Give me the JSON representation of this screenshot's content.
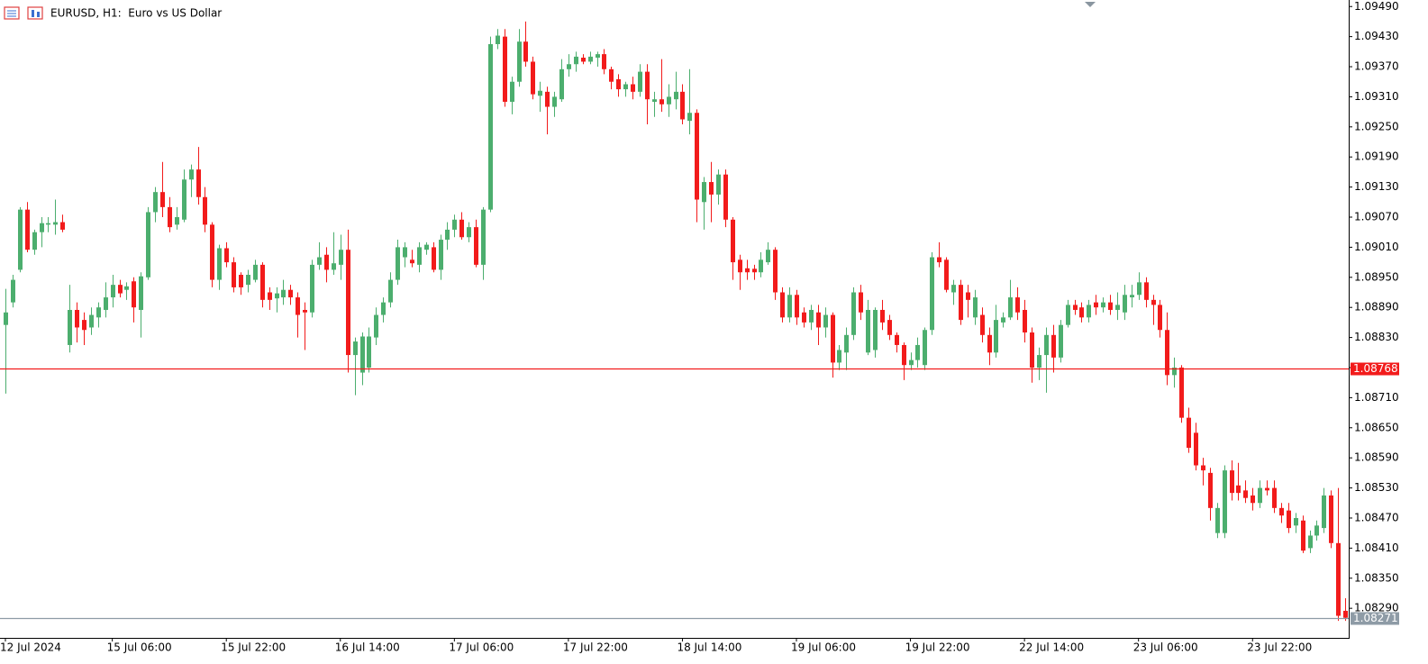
{
  "chart_data": {
    "type": "candlestick",
    "title": "EURUSD, H1:  Euro vs US Dollar",
    "up_color": "#4cae6e",
    "down_color": "#f21b1b",
    "categories": [
      "12 Jul 2024",
      null,
      null,
      null,
      null,
      null,
      null,
      null,
      null,
      null,
      null,
      null,
      null,
      null,
      null,
      "15 Jul 06:00",
      null,
      null,
      null,
      null,
      null,
      null,
      null,
      null,
      null,
      null,
      null,
      null,
      null,
      null,
      null,
      "15 Jul 22:00",
      null,
      null,
      null,
      null,
      null,
      null,
      null,
      null,
      null,
      null,
      null,
      null,
      null,
      null,
      null,
      "16 Jul 14:00",
      null,
      null,
      null,
      null,
      null,
      null,
      null,
      null,
      null,
      null,
      null,
      null,
      null,
      null,
      null,
      "17 Jul 06:00",
      null,
      null,
      null,
      null,
      null,
      null,
      null,
      null,
      null,
      null,
      null,
      null,
      null,
      null,
      null,
      "17 Jul 22:00",
      null,
      null,
      null,
      null,
      null,
      null,
      null,
      null,
      null,
      null,
      null,
      null,
      null,
      null,
      null,
      "18 Jul 14:00",
      null,
      null,
      null,
      null,
      null,
      null,
      null,
      null,
      null,
      null,
      null,
      null,
      null,
      null,
      null,
      "19 Jul 06:00",
      null,
      null,
      null,
      null,
      null,
      null,
      null,
      null,
      null,
      null,
      null,
      null,
      null,
      null,
      null,
      "19 Jul 22:00",
      null,
      null,
      null,
      null,
      null,
      null,
      null,
      null,
      null,
      null,
      null,
      null,
      null,
      null,
      null,
      "22 Jul 14:00",
      null,
      null,
      null,
      null,
      null,
      null,
      null,
      null,
      null,
      null,
      null,
      null,
      null,
      null,
      null,
      "23 Jul 06:00",
      null,
      null,
      null,
      null,
      null,
      null,
      null,
      null,
      null,
      null,
      null,
      null,
      null,
      null,
      null,
      "23 Jul 22:00",
      null,
      null,
      null,
      null,
      null,
      null,
      null,
      null,
      null,
      null,
      null,
      null,
      null
    ],
    "ohlc": [
      [
        1.08855,
        1.08927,
        1.08718,
        1.0888
      ],
      [
        1.089,
        1.08955,
        1.0889,
        1.08945
      ],
      [
        1.08965,
        1.0909,
        1.0896,
        1.09085
      ],
      [
        1.09085,
        1.091,
        1.09,
        1.09005
      ],
      [
        1.09005,
        1.09045,
        1.08995,
        1.0904
      ],
      [
        1.0904,
        1.0907,
        1.0901,
        1.09058
      ],
      [
        1.09055,
        1.0907,
        1.0904,
        1.09058
      ],
      [
        1.09055,
        1.09105,
        1.09035,
        1.0906
      ],
      [
        1.0906,
        1.09075,
        1.0904,
        1.09045
      ],
      [
        1.08815,
        1.08935,
        1.088,
        1.08885
      ],
      [
        1.08885,
        1.089,
        1.0882,
        1.0885
      ],
      [
        1.08865,
        1.0888,
        1.08815,
        1.08845
      ],
      [
        1.0885,
        1.0889,
        1.08835,
        1.08875
      ],
      [
        1.0887,
        1.089,
        1.0885,
        1.0889
      ],
      [
        1.08885,
        1.0894,
        1.0887,
        1.0891
      ],
      [
        1.0891,
        1.08955,
        1.0889,
        1.08935
      ],
      [
        1.08935,
        1.08945,
        1.0891,
        1.08918
      ],
      [
        1.08925,
        1.0894,
        1.08905,
        1.08932
      ],
      [
        1.08942,
        1.0895,
        1.0886,
        1.0889
      ],
      [
        1.08885,
        1.0896,
        1.0883,
        1.08952
      ],
      [
        1.0895,
        1.0909,
        1.08945,
        1.0908
      ],
      [
        1.0908,
        1.0913,
        1.0906,
        1.0912
      ],
      [
        1.0912,
        1.0918,
        1.0907,
        1.0909
      ],
      [
        1.0909,
        1.0911,
        1.0904,
        1.0905
      ],
      [
        1.09055,
        1.0909,
        1.09045,
        1.0907
      ],
      [
        1.09065,
        1.09165,
        1.0906,
        1.09145
      ],
      [
        1.09145,
        1.09175,
        1.0911,
        1.09165
      ],
      [
        1.09165,
        1.0921,
        1.09095,
        1.0911
      ],
      [
        1.0911,
        1.0913,
        1.0904,
        1.09055
      ],
      [
        1.09055,
        1.0906,
        1.0893,
        1.08945
      ],
      [
        1.08945,
        1.09015,
        1.08925,
        1.09008
      ],
      [
        1.09008,
        1.0902,
        1.0897,
        1.0898
      ],
      [
        1.0898,
        1.0899,
        1.0892,
        1.0893
      ],
      [
        1.08955,
        1.0896,
        1.08915,
        1.0893
      ],
      [
        1.08935,
        1.08965,
        1.0892,
        1.08955
      ],
      [
        1.08945,
        1.08985,
        1.0894,
        1.08975
      ],
      [
        1.08975,
        1.0898,
        1.0889,
        1.08905
      ],
      [
        1.0892,
        1.0893,
        1.08885,
        1.08905
      ],
      [
        1.08908,
        1.0893,
        1.0888,
        1.08918
      ],
      [
        1.0891,
        1.08945,
        1.08895,
        1.08925
      ],
      [
        1.08925,
        1.08935,
        1.08895,
        1.0891
      ],
      [
        1.0891,
        1.0892,
        1.0883,
        1.08875
      ],
      [
        1.08885,
        1.089,
        1.08805,
        1.0888
      ],
      [
        1.0888,
        1.08985,
        1.0887,
        1.08975
      ],
      [
        1.08975,
        1.0902,
        1.08965,
        1.0899
      ],
      [
        1.08995,
        1.0901,
        1.0894,
        1.08965
      ],
      [
        1.08965,
        1.0904,
        1.08955,
        1.08978
      ],
      [
        1.08975,
        1.09035,
        1.08945,
        1.09005
      ],
      [
        1.09005,
        1.09045,
        1.0876,
        1.08795
      ],
      [
        1.08795,
        1.0883,
        1.08715,
        1.08822
      ],
      [
        1.0876,
        1.0884,
        1.08735,
        1.08832
      ],
      [
        1.0877,
        1.0885,
        1.0876,
        1.08832
      ],
      [
        1.0883,
        1.0889,
        1.08815,
        1.08875
      ],
      [
        1.08875,
        1.0891,
        1.0886,
        1.089
      ],
      [
        1.089,
        1.0896,
        1.0889,
        1.08945
      ],
      [
        1.08945,
        1.09025,
        1.08935,
        1.0901
      ],
      [
        1.0899,
        1.0902,
        1.0897,
        1.0901
      ],
      [
        1.08985,
        1.09005,
        1.0897,
        1.08978
      ],
      [
        1.08975,
        1.0902,
        1.0896,
        1.0901
      ],
      [
        1.09005,
        1.0902,
        1.08995,
        1.09015
      ],
      [
        1.0901,
        1.0902,
        1.0896,
        1.08965
      ],
      [
        1.08965,
        1.09035,
        1.08945,
        1.09025
      ],
      [
        1.09025,
        1.0906,
        1.09005,
        1.09045
      ],
      [
        1.09045,
        1.09075,
        1.0903,
        1.09065
      ],
      [
        1.09065,
        1.0908,
        1.09025,
        1.0903
      ],
      [
        1.0903,
        1.0906,
        1.0902,
        1.0905
      ],
      [
        1.0905,
        1.09065,
        1.0897,
        1.08975
      ],
      [
        1.08975,
        1.0909,
        1.08945,
        1.09085
      ],
      [
        1.09085,
        1.0943,
        1.0908,
        1.09415
      ],
      [
        1.09415,
        1.09445,
        1.09405,
        1.09432
      ],
      [
        1.0943,
        1.09445,
        1.0929,
        1.093
      ],
      [
        1.093,
        1.0935,
        1.09275,
        1.0934
      ],
      [
        1.0934,
        1.09445,
        1.0933,
        1.0942
      ],
      [
        1.0942,
        1.0946,
        1.0937,
        1.0938
      ],
      [
        1.0938,
        1.0939,
        1.09305,
        1.09315
      ],
      [
        1.09312,
        1.0934,
        1.0928,
        1.09322
      ],
      [
        1.0932,
        1.0933,
        1.09235,
        1.0929
      ],
      [
        1.0929,
        1.0932,
        1.0927,
        1.0931
      ],
      [
        1.09305,
        1.09385,
        1.093,
        1.09365
      ],
      [
        1.09365,
        1.09395,
        1.0935,
        1.09375
      ],
      [
        1.09375,
        1.094,
        1.0936,
        1.0939
      ],
      [
        1.09388,
        1.09395,
        1.09375,
        1.0938
      ],
      [
        1.0938,
        1.094,
        1.09375,
        1.0939
      ],
      [
        1.09388,
        1.094,
        1.0937,
        1.09395
      ],
      [
        1.09395,
        1.09405,
        1.09355,
        1.09365
      ],
      [
        1.09365,
        1.0937,
        1.09325,
        1.0934
      ],
      [
        1.09345,
        1.09355,
        1.0931,
        1.09325
      ],
      [
        1.09325,
        1.0934,
        1.0931,
        1.09335
      ],
      [
        1.09335,
        1.0935,
        1.09305,
        1.0932
      ],
      [
        1.0932,
        1.09375,
        1.0931,
        1.0936
      ],
      [
        1.0936,
        1.09375,
        1.09255,
        1.09305
      ],
      [
        1.093,
        1.0932,
        1.0927,
        1.09305
      ],
      [
        1.09305,
        1.09385,
        1.0928,
        1.09295
      ],
      [
        1.09295,
        1.09335,
        1.0927,
        1.0931
      ],
      [
        1.09305,
        1.0936,
        1.09285,
        1.0932
      ],
      [
        1.0932,
        1.09335,
        1.09255,
        1.09265
      ],
      [
        1.09262,
        1.09365,
        1.09235,
        1.09278
      ],
      [
        1.09278,
        1.09285,
        1.0906,
        1.09105
      ],
      [
        1.091,
        1.0915,
        1.09045,
        1.0914
      ],
      [
        1.0914,
        1.0918,
        1.0906,
        1.09115
      ],
      [
        1.09115,
        1.09165,
        1.09095,
        1.09155
      ],
      [
        1.09155,
        1.09165,
        1.0905,
        1.09065
      ],
      [
        1.09065,
        1.0907,
        1.08945,
        1.0898
      ],
      [
        1.08985,
        1.08995,
        1.08925,
        1.0896
      ],
      [
        1.08968,
        1.08985,
        1.08945,
        1.0896
      ],
      [
        1.08967,
        1.08975,
        1.08945,
        1.0896
      ],
      [
        1.0896,
        1.09,
        1.0895,
        1.08985
      ],
      [
        1.0898,
        1.0902,
        1.08975,
        1.09005
      ],
      [
        1.09005,
        1.0901,
        1.08905,
        1.0892
      ],
      [
        1.0892,
        1.0893,
        1.0886,
        1.0887
      ],
      [
        1.0887,
        1.0893,
        1.0886,
        1.08915
      ],
      [
        1.08915,
        1.08925,
        1.08855,
        1.0887
      ],
      [
        1.0888,
        1.0889,
        1.0885,
        1.0886
      ],
      [
        1.0886,
        1.08895,
        1.08845,
        1.08885
      ],
      [
        1.0888,
        1.08895,
        1.08815,
        1.0885
      ],
      [
        1.0885,
        1.0889,
        1.0883,
        1.08875
      ],
      [
        1.08875,
        1.0888,
        1.0875,
        1.0878
      ],
      [
        1.0878,
        1.08815,
        1.08765,
        1.08805
      ],
      [
        1.088,
        1.0885,
        1.08765,
        1.08835
      ],
      [
        1.08835,
        1.0893,
        1.08825,
        1.0892
      ],
      [
        1.0892,
        1.08935,
        1.08865,
        1.0888
      ],
      [
        1.088,
        1.08905,
        1.08795,
        1.08885
      ],
      [
        1.08805,
        1.0889,
        1.0879,
        1.08885
      ],
      [
        1.08885,
        1.08905,
        1.08845,
        1.0886
      ],
      [
        1.08865,
        1.08875,
        1.08825,
        1.08835
      ],
      [
        1.08835,
        1.0884,
        1.088,
        1.08815
      ],
      [
        1.08815,
        1.0882,
        1.08745,
        1.08775
      ],
      [
        1.08775,
        1.088,
        1.08765,
        1.08785
      ],
      [
        1.08785,
        1.0883,
        1.0877,
        1.08815
      ],
      [
        1.08775,
        1.0885,
        1.08765,
        1.08845
      ],
      [
        1.08845,
        1.09,
        1.08835,
        1.0899
      ],
      [
        1.0899,
        1.0902,
        1.0897,
        1.0898
      ],
      [
        1.08985,
        1.0899,
        1.0892,
        1.08925
      ],
      [
        1.0892,
        1.08945,
        1.08895,
        1.08935
      ],
      [
        1.08935,
        1.08945,
        1.08855,
        1.08865
      ],
      [
        1.0892,
        1.08935,
        1.0887,
        1.08905
      ],
      [
        1.0887,
        1.08925,
        1.08855,
        1.0891
      ],
      [
        1.08875,
        1.0889,
        1.0882,
        1.08835
      ],
      [
        1.08835,
        1.0885,
        1.08775,
        1.088
      ],
      [
        1.088,
        1.08895,
        1.0879,
        1.08865
      ],
      [
        1.0886,
        1.0888,
        1.0885,
        1.0887
      ],
      [
        1.0887,
        1.08945,
        1.08865,
        1.0891
      ],
      [
        1.0891,
        1.0893,
        1.08865,
        1.0888
      ],
      [
        1.08885,
        1.08905,
        1.0882,
        1.0884
      ],
      [
        1.0884,
        1.0885,
        1.0874,
        1.0877
      ],
      [
        1.0877,
        1.0881,
        1.08745,
        1.08795
      ],
      [
        1.08795,
        1.0885,
        1.0872,
        1.08835
      ],
      [
        1.08835,
        1.08855,
        1.0876,
        1.0879
      ],
      [
        1.0879,
        1.08865,
        1.0878,
        1.08855
      ],
      [
        1.08855,
        1.08905,
        1.0885,
        1.08895
      ],
      [
        1.08895,
        1.08905,
        1.08875,
        1.08885
      ],
      [
        1.0889,
        1.089,
        1.0886,
        1.0887
      ],
      [
        1.0887,
        1.08905,
        1.0886,
        1.08895
      ],
      [
        1.089,
        1.08915,
        1.08875,
        1.0889
      ],
      [
        1.0889,
        1.0891,
        1.0888,
        1.089
      ],
      [
        1.089,
        1.08915,
        1.08875,
        1.08885
      ],
      [
        1.08885,
        1.0892,
        1.08865,
        1.08895
      ],
      [
        1.0888,
        1.08935,
        1.08865,
        1.08915
      ],
      [
        1.0891,
        1.08935,
        1.0889,
        1.08915
      ],
      [
        1.08915,
        1.0896,
        1.08905,
        1.0894
      ],
      [
        1.0894,
        1.0895,
        1.0889,
        1.08905
      ],
      [
        1.08905,
        1.08915,
        1.08855,
        1.08895
      ],
      [
        1.08895,
        1.08905,
        1.0883,
        1.08845
      ],
      [
        1.08845,
        1.0888,
        1.08735,
        1.08755
      ],
      [
        1.08755,
        1.0879,
        1.0873,
        1.0877
      ],
      [
        1.0877,
        1.08775,
        1.0866,
        1.0867
      ],
      [
        1.0867,
        1.0869,
        1.086,
        1.0861
      ],
      [
        1.0864,
        1.0866,
        1.08565,
        1.08575
      ],
      [
        1.08575,
        1.0859,
        1.08535,
        1.08565
      ],
      [
        1.0856,
        1.0857,
        1.08465,
        1.0849
      ],
      [
        1.0844,
        1.085,
        1.0843,
        1.0849
      ],
      [
        1.0844,
        1.08575,
        1.0843,
        1.08565
      ],
      [
        1.08565,
        1.08585,
        1.08505,
        1.0852
      ],
      [
        1.08535,
        1.0858,
        1.08505,
        1.0852
      ],
      [
        1.08525,
        1.08545,
        1.085,
        1.0851
      ],
      [
        1.08515,
        1.0853,
        1.08485,
        1.085
      ],
      [
        1.085,
        1.08545,
        1.0849,
        1.0853
      ],
      [
        1.0853,
        1.08545,
        1.08515,
        1.08525
      ],
      [
        1.0853,
        1.08545,
        1.0848,
        1.0849
      ],
      [
        1.0849,
        1.085,
        1.0846,
        1.08475
      ],
      [
        1.08485,
        1.085,
        1.0844,
        1.0845
      ],
      [
        1.08455,
        1.0848,
        1.0844,
        1.0847
      ],
      [
        1.08465,
        1.08475,
        1.084,
        1.08405
      ],
      [
        1.0841,
        1.08445,
        1.084,
        1.08435
      ],
      [
        1.08435,
        1.08465,
        1.08425,
        1.08455
      ],
      [
        1.0845,
        1.0853,
        1.0844,
        1.08515
      ],
      [
        1.08515,
        1.08525,
        1.0841,
        1.0842
      ],
      [
        1.0842,
        1.0853,
        1.08265,
        1.08275
      ],
      [
        1.08285,
        1.0831,
        1.08265,
        1.08271
      ]
    ],
    "ylim": [
      1.08231,
      1.09503
    ],
    "yticks": [
      {
        "value": 1.0949,
        "label": "1.09490"
      },
      {
        "value": 1.0943,
        "label": "1.09430"
      },
      {
        "value": 1.0937,
        "label": "1.09370"
      },
      {
        "value": 1.0931,
        "label": "1.09310"
      },
      {
        "value": 1.0925,
        "label": "1.09250"
      },
      {
        "value": 1.0919,
        "label": "1.09190"
      },
      {
        "value": 1.0913,
        "label": "1.09130"
      },
      {
        "value": 1.0907,
        "label": "1.09070"
      },
      {
        "value": 1.0901,
        "label": "1.09010"
      },
      {
        "value": 1.0895,
        "label": "1.08950"
      },
      {
        "value": 1.0889,
        "label": "1.08890"
      },
      {
        "value": 1.0883,
        "label": "1.08830"
      },
      {
        "value": 1.0877,
        "label": "1.08770"
      },
      {
        "value": 1.0871,
        "label": "1.08710"
      },
      {
        "value": 1.0865,
        "label": "1.08650"
      },
      {
        "value": 1.0859,
        "label": "1.08590"
      },
      {
        "value": 1.0853,
        "label": "1.08530"
      },
      {
        "value": 1.0847,
        "label": "1.08470"
      },
      {
        "value": 1.0841,
        "label": "1.08410"
      },
      {
        "value": 1.0835,
        "label": "1.08350"
      },
      {
        "value": 1.0829,
        "label": "1.08290"
      }
    ],
    "hlines": [
      {
        "value": 1.08768,
        "color": "#f21b1b"
      },
      {
        "value": 1.08271,
        "color": "#8e9ba6"
      }
    ]
  }
}
